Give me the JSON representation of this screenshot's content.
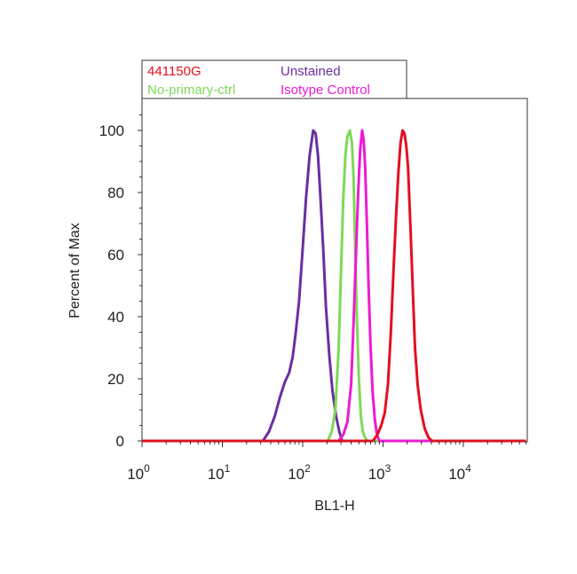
{
  "chart_data": {
    "type": "line",
    "xlabel": "BL1-H",
    "ylabel": "Percent of Max",
    "x_scale": "log",
    "xlim": [
      1,
      60000
    ],
    "ylim": [
      0,
      110
    ],
    "x_ticks": [
      {
        "base": "10",
        "exp": "0",
        "value": 1
      },
      {
        "base": "10",
        "exp": "1",
        "value": 10
      },
      {
        "base": "10",
        "exp": "2",
        "value": 100
      },
      {
        "base": "10",
        "exp": "3",
        "value": 1000
      },
      {
        "base": "10",
        "exp": "4",
        "value": 10000
      }
    ],
    "y_ticks": [
      "0",
      "20",
      "40",
      "60",
      "80",
      "100"
    ],
    "grid": false,
    "legend_position": "top",
    "series": [
      {
        "name": "441150G",
        "color": "#e3101e",
        "x": [
          1,
          750,
          850,
          950,
          1050,
          1150,
          1250,
          1350,
          1450,
          1550,
          1650,
          1750,
          1850,
          1950,
          2050,
          2200,
          2350,
          2500,
          2700,
          2950,
          3300,
          3700,
          4100,
          60000
        ],
        "y": [
          0,
          0,
          2,
          5,
          9,
          18,
          35,
          55,
          72,
          86,
          96,
          100,
          99,
          95,
          88,
          68,
          48,
          30,
          18,
          10,
          4,
          1,
          0,
          0
        ]
      },
      {
        "name": "Unstained",
        "color": "#6a2fa0",
        "x": [
          1,
          32,
          38,
          45,
          52,
          60,
          68,
          75,
          82,
          90,
          100,
          110,
          122,
          135,
          145,
          155,
          165,
          180,
          195,
          215,
          235,
          260,
          285,
          310,
          60000
        ],
        "y": [
          0,
          0,
          3,
          8,
          14,
          19,
          22,
          27,
          35,
          45,
          62,
          78,
          92,
          100,
          99,
          92,
          80,
          62,
          43,
          27,
          16,
          8,
          3,
          0,
          0
        ]
      },
      {
        "name": "No-primary-ctrl",
        "color": "#7ed957",
        "x": [
          1,
          205,
          230,
          255,
          280,
          300,
          320,
          340,
          360,
          385,
          410,
          430,
          450,
          475,
          500,
          530,
          560,
          600,
          640,
          60000
        ],
        "y": [
          0,
          0,
          3,
          10,
          30,
          55,
          78,
          92,
          98,
          100,
          96,
          85,
          62,
          38,
          20,
          8,
          3,
          1,
          0,
          0
        ]
      },
      {
        "name": "Isotype Control",
        "color": "#ee1ad3",
        "x": [
          1,
          280,
          320,
          360,
          400,
          430,
          460,
          490,
          520,
          550,
          575,
          600,
          630,
          660,
          700,
          740,
          790,
          840,
          900,
          60000
        ],
        "y": [
          0,
          0,
          2,
          6,
          18,
          38,
          60,
          80,
          94,
          100,
          97,
          88,
          70,
          50,
          30,
          16,
          7,
          2,
          0,
          0
        ]
      }
    ]
  }
}
